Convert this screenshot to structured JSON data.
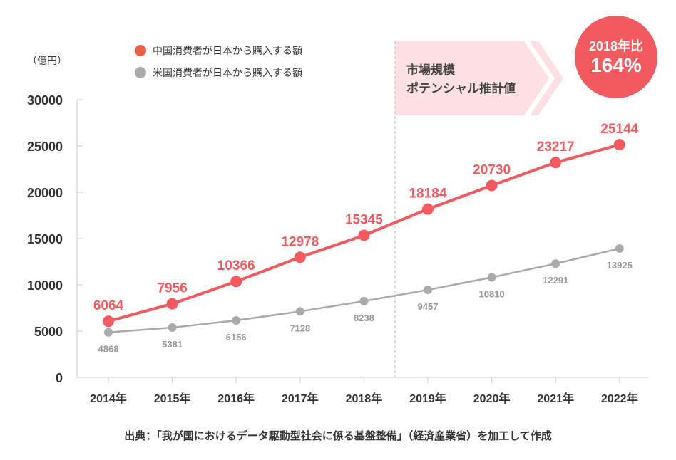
{
  "chart_data": {
    "type": "line",
    "ylabel": "（億円）",
    "ylim": [
      0,
      30000
    ],
    "yticks": [
      0,
      5000,
      10000,
      15000,
      20000,
      25000,
      30000
    ],
    "categories": [
      "2014年",
      "2015年",
      "2016年",
      "2017年",
      "2018年",
      "2019年",
      "2020年",
      "2021年",
      "2022年"
    ],
    "grid": false,
    "legend_position": "top",
    "series": [
      {
        "name": "中国消費者が日本から購入する額",
        "color": "#f25a60",
        "legend_color": "#ef5f45",
        "values": [
          6064,
          7956,
          10366,
          12978,
          15345,
          18184,
          20730,
          23217,
          25144
        ]
      },
      {
        "name": "米国消費者が日本から購入する額",
        "color": "#aaaaaa",
        "values": [
          4868,
          5381,
          6156,
          7128,
          8238,
          9457,
          10810,
          12291,
          13925
        ]
      }
    ],
    "annotations": {
      "projection_label": [
        "市場規模",
        "ポテンシャル推計値"
      ],
      "projection_start_after": "2018年",
      "badge_line1": "2018年比",
      "badge_line2": "164%"
    },
    "source": "出典：「我が国におけるデータ駆動型社会に係る基盤整備」（経済産業省）を加工して作成"
  }
}
